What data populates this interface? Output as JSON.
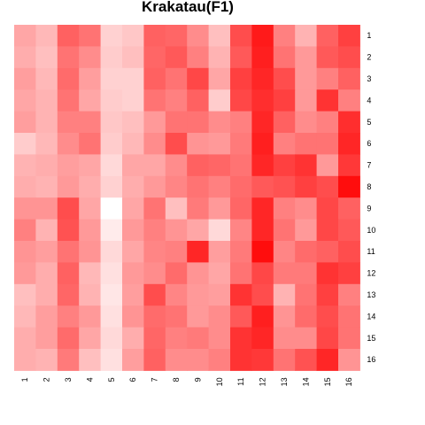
{
  "chart_data": {
    "type": "heatmap",
    "title": "Krakatau(F1)",
    "x_labels": [
      "1",
      "2",
      "3",
      "4",
      "5",
      "6",
      "7",
      "8",
      "9",
      "10",
      "11",
      "12",
      "13",
      "14",
      "15",
      "16"
    ],
    "y_labels": [
      "1",
      "2",
      "3",
      "4",
      "5",
      "6",
      "7",
      "8",
      "9",
      "10",
      "11",
      "12",
      "13",
      "14",
      "15",
      "16"
    ],
    "color_low": "#ffffff",
    "color_high": "#ff0000",
    "value_range": [
      0,
      1
    ],
    "values": [
      [
        0.35,
        0.28,
        0.62,
        0.55,
        0.18,
        0.22,
        0.62,
        0.6,
        0.45,
        0.25,
        0.7,
        0.9,
        0.5,
        0.3,
        0.62,
        0.75
      ],
      [
        0.32,
        0.25,
        0.55,
        0.45,
        0.2,
        0.25,
        0.6,
        0.65,
        0.5,
        0.3,
        0.65,
        0.88,
        0.55,
        0.4,
        0.65,
        0.7
      ],
      [
        0.38,
        0.28,
        0.58,
        0.38,
        0.18,
        0.18,
        0.62,
        0.55,
        0.72,
        0.35,
        0.75,
        0.85,
        0.7,
        0.4,
        0.5,
        0.62
      ],
      [
        0.35,
        0.3,
        0.55,
        0.35,
        0.2,
        0.18,
        0.55,
        0.5,
        0.62,
        0.2,
        0.72,
        0.82,
        0.75,
        0.4,
        0.8,
        0.5
      ],
      [
        0.38,
        0.3,
        0.5,
        0.5,
        0.22,
        0.25,
        0.4,
        0.55,
        0.55,
        0.45,
        0.5,
        0.85,
        0.62,
        0.45,
        0.5,
        0.82
      ],
      [
        0.2,
        0.28,
        0.45,
        0.55,
        0.2,
        0.28,
        0.45,
        0.7,
        0.42,
        0.4,
        0.52,
        0.88,
        0.5,
        0.55,
        0.55,
        0.85
      ],
      [
        0.3,
        0.32,
        0.38,
        0.35,
        0.15,
        0.35,
        0.35,
        0.45,
        0.62,
        0.6,
        0.55,
        0.85,
        0.75,
        0.8,
        0.4,
        0.78
      ],
      [
        0.32,
        0.3,
        0.4,
        0.32,
        0.18,
        0.32,
        0.4,
        0.48,
        0.55,
        0.5,
        0.58,
        0.65,
        0.68,
        0.75,
        0.7,
        0.95
      ],
      [
        0.42,
        0.42,
        0.7,
        0.35,
        0.0,
        0.35,
        0.55,
        0.25,
        0.52,
        0.4,
        0.6,
        0.85,
        0.5,
        0.45,
        0.72,
        0.62
      ],
      [
        0.5,
        0.3,
        0.68,
        0.4,
        0.08,
        0.4,
        0.5,
        0.42,
        0.35,
        0.15,
        0.48,
        0.85,
        0.55,
        0.4,
        0.72,
        0.65
      ],
      [
        0.42,
        0.38,
        0.55,
        0.42,
        0.15,
        0.35,
        0.48,
        0.5,
        0.85,
        0.38,
        0.52,
        0.95,
        0.48,
        0.58,
        0.62,
        0.7
      ],
      [
        0.4,
        0.32,
        0.62,
        0.28,
        0.12,
        0.4,
        0.45,
        0.58,
        0.42,
        0.35,
        0.55,
        0.72,
        0.52,
        0.52,
        0.8,
        0.75
      ],
      [
        0.25,
        0.32,
        0.6,
        0.3,
        0.1,
        0.38,
        0.7,
        0.48,
        0.4,
        0.38,
        0.8,
        0.7,
        0.3,
        0.55,
        0.75,
        0.5
      ],
      [
        0.28,
        0.38,
        0.5,
        0.4,
        0.12,
        0.42,
        0.58,
        0.55,
        0.4,
        0.45,
        0.65,
        0.88,
        0.42,
        0.58,
        0.7,
        0.55
      ],
      [
        0.32,
        0.38,
        0.58,
        0.35,
        0.15,
        0.32,
        0.6,
        0.5,
        0.52,
        0.45,
        0.8,
        0.85,
        0.45,
        0.45,
        0.72,
        0.55
      ],
      [
        0.32,
        0.3,
        0.52,
        0.25,
        0.12,
        0.38,
        0.62,
        0.45,
        0.45,
        0.5,
        0.8,
        0.78,
        0.55,
        0.68,
        0.85,
        0.42
      ]
    ]
  }
}
